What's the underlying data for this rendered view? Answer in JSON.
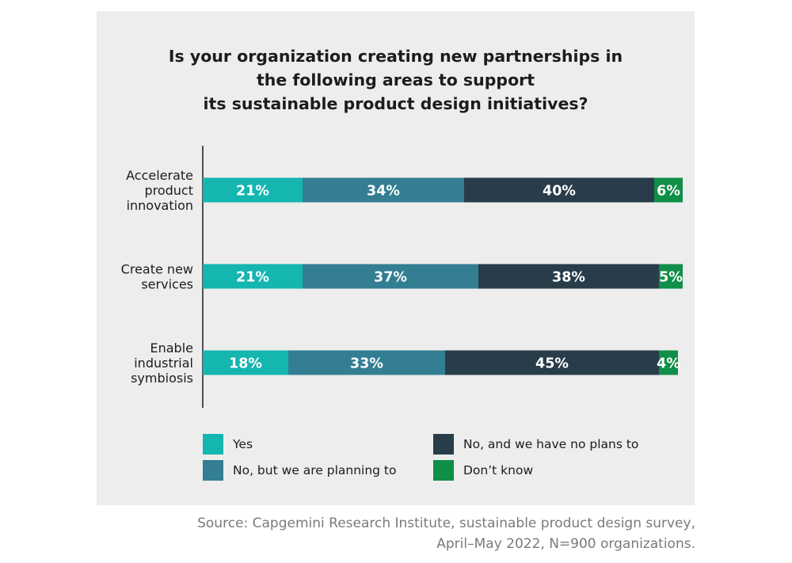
{
  "chart_data": {
    "type": "bar",
    "orientation": "horizontal",
    "stacked": true,
    "title": "Is your organization creating new partnerships in\nthe following areas to support\nits sustainable product design initiatives?",
    "categories": [
      "Accelerate\nproduct\ninnovation",
      "Create new\nservices",
      "Enable\nindustrial\nsymbiosis"
    ],
    "series": [
      {
        "name": "Yes",
        "color": "#15b5b0",
        "values": [
          21,
          21,
          18
        ],
        "labels": [
          "21%",
          "21%",
          "18%"
        ]
      },
      {
        "name": "No, but we are planning to",
        "color": "#337e93",
        "values": [
          34,
          37,
          33
        ],
        "labels": [
          "34%",
          "37%",
          "33%"
        ]
      },
      {
        "name": "No, and we have no plans to",
        "color": "#283c4a",
        "values": [
          40,
          38,
          45
        ],
        "labels": [
          "40%",
          "38%",
          "45%"
        ]
      },
      {
        "name": "Don’t know",
        "color": "#0f8f47",
        "values": [
          6,
          5,
          4
        ],
        "labels": [
          "6%",
          "5%",
          "4%"
        ]
      }
    ],
    "xlim": [
      0,
      100
    ],
    "grid": false,
    "legend_position": "bottom"
  },
  "legend_order": [
    0,
    2,
    1,
    3
  ],
  "source": "Source: Capgemini Research Institute, sustainable product design survey,\nApril–May 2022, N=900 organizations."
}
